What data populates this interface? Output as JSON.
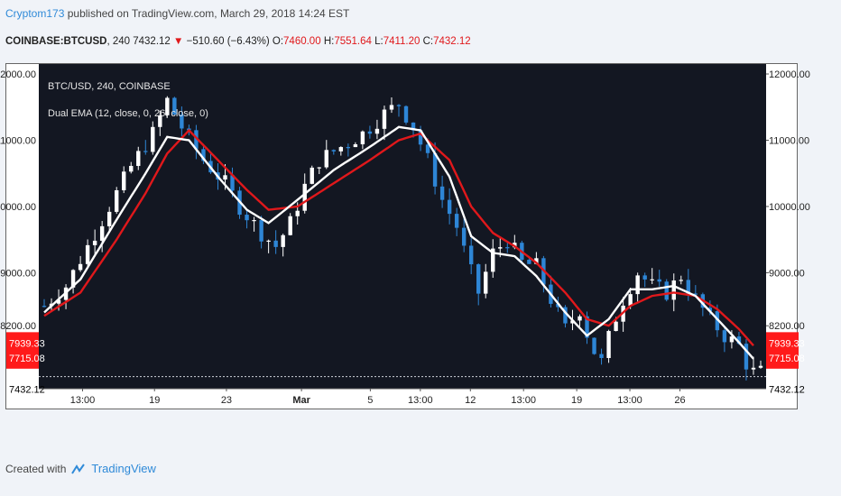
{
  "header": {
    "author": "Cryptom173",
    "published": "published on TradingView.com, March 29, 2018 14:24 EST"
  },
  "symbol_line": {
    "symbol": "COINBASE:BTCUSD",
    "interval": "240",
    "last": "7432.12",
    "change": "−510.60 (−6.43%)",
    "open_label": "O:",
    "open": "7460.00",
    "high_label": "H:",
    "high": "7551.64",
    "low_label": "L:",
    "low": "7411.20",
    "close_label": "C:",
    "close": "7432.12"
  },
  "legend": {
    "series_title": "BTC/USD, 240, COINBASE",
    "indicator": "Dual EMA (12, close, 0, 26, close, 0)"
  },
  "footer": {
    "created_with": "Created with",
    "brand": "TradingView"
  },
  "colors": {
    "background": "#131722",
    "up_candle": "#ffffff",
    "down_candle": "#2e86d6",
    "ema_fast": "#ffffff",
    "ema_slow": "#e0181b",
    "price_tag": "#ff1a1a"
  },
  "chart_data": {
    "type": "candlestick",
    "ylim": [
      7250,
      12150
    ],
    "y_ticks": [
      "12000.00",
      "11000.00",
      "10000.00",
      "9000.00",
      "8200.00"
    ],
    "y_tick_values": [
      12000,
      11000,
      10000,
      9000,
      8200
    ],
    "price_tags": [
      {
        "label": "7939.33",
        "value": 7939.33
      },
      {
        "label": "7715.08",
        "value": 7715.08
      }
    ],
    "last_price": {
      "label": "7432.12",
      "value": 7432.12
    },
    "x_ticks": [
      {
        "label": "13:00",
        "pos": 0.07
      },
      {
        "label": "19",
        "pos": 0.185
      },
      {
        "label": "23",
        "pos": 0.3
      },
      {
        "label": "Mar",
        "pos": 0.42,
        "bold": true
      },
      {
        "label": "5",
        "pos": 0.53
      },
      {
        "label": "13:00",
        "pos": 0.61
      },
      {
        "label": "12",
        "pos": 0.69
      },
      {
        "label": "13:00",
        "pos": 0.775
      },
      {
        "label": "19",
        "pos": 0.86
      },
      {
        "label": "13:00",
        "pos": 0.945
      },
      {
        "label": "26",
        "pos": 1.025
      }
    ],
    "price_path": [
      [
        0,
        8500
      ],
      [
        3,
        8800
      ],
      [
        8,
        9800
      ],
      [
        12,
        10600
      ],
      [
        15,
        11100
      ],
      [
        17,
        11600
      ],
      [
        19,
        11200
      ],
      [
        22,
        10700
      ],
      [
        25,
        10350
      ],
      [
        27,
        10000
      ],
      [
        30,
        9600
      ],
      [
        32,
        9400
      ],
      [
        34,
        9750
      ],
      [
        36,
        10300
      ],
      [
        38,
        10700
      ],
      [
        41,
        10900
      ],
      [
        44,
        11100
      ],
      [
        47,
        11400
      ],
      [
        49,
        11550
      ],
      [
        51,
        11200
      ],
      [
        53,
        10700
      ],
      [
        55,
        10100
      ],
      [
        57,
        9700
      ],
      [
        58.5,
        9150
      ],
      [
        60,
        8700
      ],
      [
        62,
        9300
      ],
      [
        64,
        9500
      ],
      [
        66,
        9150
      ],
      [
        68,
        9100
      ],
      [
        70,
        8600
      ],
      [
        72,
        8150
      ],
      [
        74,
        8450
      ],
      [
        75.5,
        7900
      ],
      [
        77,
        7650
      ],
      [
        78.5,
        8200
      ],
      [
        80,
        8600
      ],
      [
        82,
        9000
      ],
      [
        84,
        8800
      ],
      [
        86,
        8700
      ],
      [
        88,
        8950
      ],
      [
        90,
        8600
      ],
      [
        92,
        8300
      ],
      [
        94,
        8050
      ],
      [
        96,
        7900
      ],
      [
        97.5,
        7500
      ]
    ],
    "ema_fast": [
      [
        0,
        8400
      ],
      [
        5,
        8900
      ],
      [
        10,
        9800
      ],
      [
        14,
        10500
      ],
      [
        17,
        11050
      ],
      [
        20,
        11000
      ],
      [
        24,
        10450
      ],
      [
        28,
        9950
      ],
      [
        31,
        9750
      ],
      [
        35,
        10100
      ],
      [
        40,
        10550
      ],
      [
        45,
        10900
      ],
      [
        49,
        11200
      ],
      [
        52,
        11150
      ],
      [
        56,
        10450
      ],
      [
        59,
        9550
      ],
      [
        62,
        9300
      ],
      [
        65,
        9250
      ],
      [
        68,
        8950
      ],
      [
        72,
        8400
      ],
      [
        75,
        8050
      ],
      [
        78,
        8300
      ],
      [
        81,
        8750
      ],
      [
        84,
        8750
      ],
      [
        87,
        8800
      ],
      [
        90,
        8650
      ],
      [
        93,
        8300
      ],
      [
        96,
        7950
      ],
      [
        98,
        7700
      ]
    ],
    "ema_slow": [
      [
        0,
        8350
      ],
      [
        5,
        8700
      ],
      [
        10,
        9500
      ],
      [
        14,
        10200
      ],
      [
        17,
        10800
      ],
      [
        20,
        11150
      ],
      [
        24,
        10700
      ],
      [
        28,
        10250
      ],
      [
        31,
        9950
      ],
      [
        35,
        10000
      ],
      [
        40,
        10350
      ],
      [
        45,
        10700
      ],
      [
        49,
        11000
      ],
      [
        52,
        11100
      ],
      [
        56,
        10700
      ],
      [
        59,
        10000
      ],
      [
        62,
        9600
      ],
      [
        65,
        9400
      ],
      [
        68,
        9150
      ],
      [
        72,
        8700
      ],
      [
        75,
        8300
      ],
      [
        78,
        8200
      ],
      [
        81,
        8500
      ],
      [
        84,
        8650
      ],
      [
        87,
        8700
      ],
      [
        90,
        8650
      ],
      [
        93,
        8450
      ],
      [
        96,
        8150
      ],
      [
        98,
        7900
      ]
    ]
  }
}
